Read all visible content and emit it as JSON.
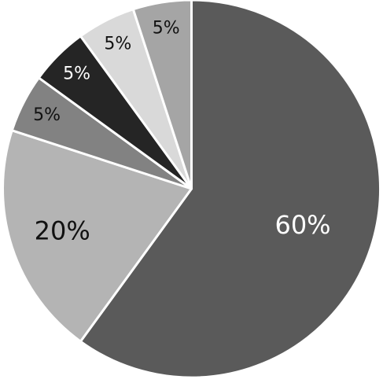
{
  "chart_data": {
    "type": "pie",
    "start_angle_deg": 0,
    "direction": "clockwise",
    "slices": [
      {
        "label": "60%",
        "value": 60,
        "color": "#5a5a5a",
        "label_color": "#ffffff"
      },
      {
        "label": "20%",
        "value": 20,
        "color": "#b4b4b4",
        "label_color": "#111111"
      },
      {
        "label": "5%",
        "value": 5,
        "color": "#828282",
        "label_color": "#111111"
      },
      {
        "label": "5%",
        "value": 5,
        "color": "#252525",
        "label_color": "#ffffff"
      },
      {
        "label": "5%",
        "value": 5,
        "color": "#d9d9d9",
        "label_color": "#111111"
      },
      {
        "label": "5%",
        "value": 5,
        "color": "#a5a5a5",
        "label_color": "#111111"
      }
    ]
  }
}
